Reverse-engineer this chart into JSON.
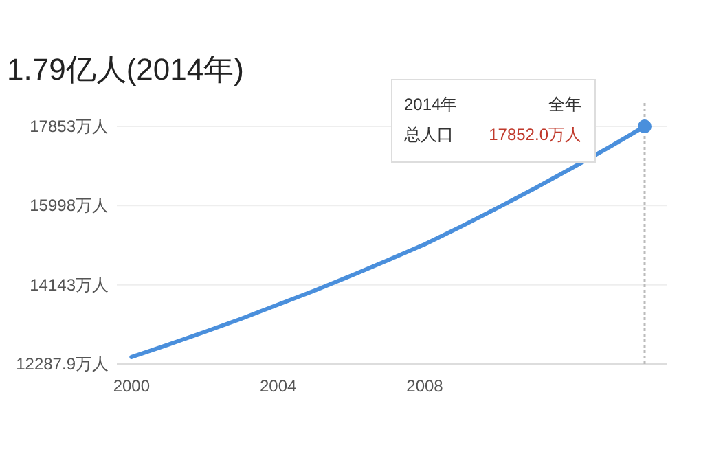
{
  "chart_data": {
    "type": "line",
    "title": "1.79亿人(2014年)",
    "x": [
      2000,
      2001,
      2002,
      2003,
      2004,
      2005,
      2006,
      2007,
      2008,
      2009,
      2010,
      2011,
      2012,
      2013,
      2014
    ],
    "series": [
      {
        "color": "#4a8fdc",
        "values": [
          12450,
          12740,
          13040,
          13350,
          13680,
          14010,
          14360,
          14720,
          15090,
          15510,
          15950,
          16400,
          16870,
          17350,
          17852
        ]
      }
    ],
    "xlim": [
      1999.6,
      2014.6
    ],
    "xticks": [
      2000,
      2004,
      2008
    ],
    "ylim": [
      12287.9,
      18400
    ],
    "yticks": [
      {
        "value": 12287.9,
        "label": "12287.9万人"
      },
      {
        "value": 14143,
        "label": "14143万人"
      },
      {
        "value": 15998,
        "label": "15998万人"
      },
      {
        "value": 17853,
        "label": "17853万人"
      }
    ],
    "grid": "y",
    "marker": "none",
    "line_style": "solid",
    "ref_lines": [
      {
        "axis": "x",
        "value": 2014,
        "line_style": "dotted",
        "color": "#bbbbbb"
      }
    ],
    "annotations": [
      "2014年",
      "全年",
      "总人口",
      "17852.0万人"
    ]
  }
}
